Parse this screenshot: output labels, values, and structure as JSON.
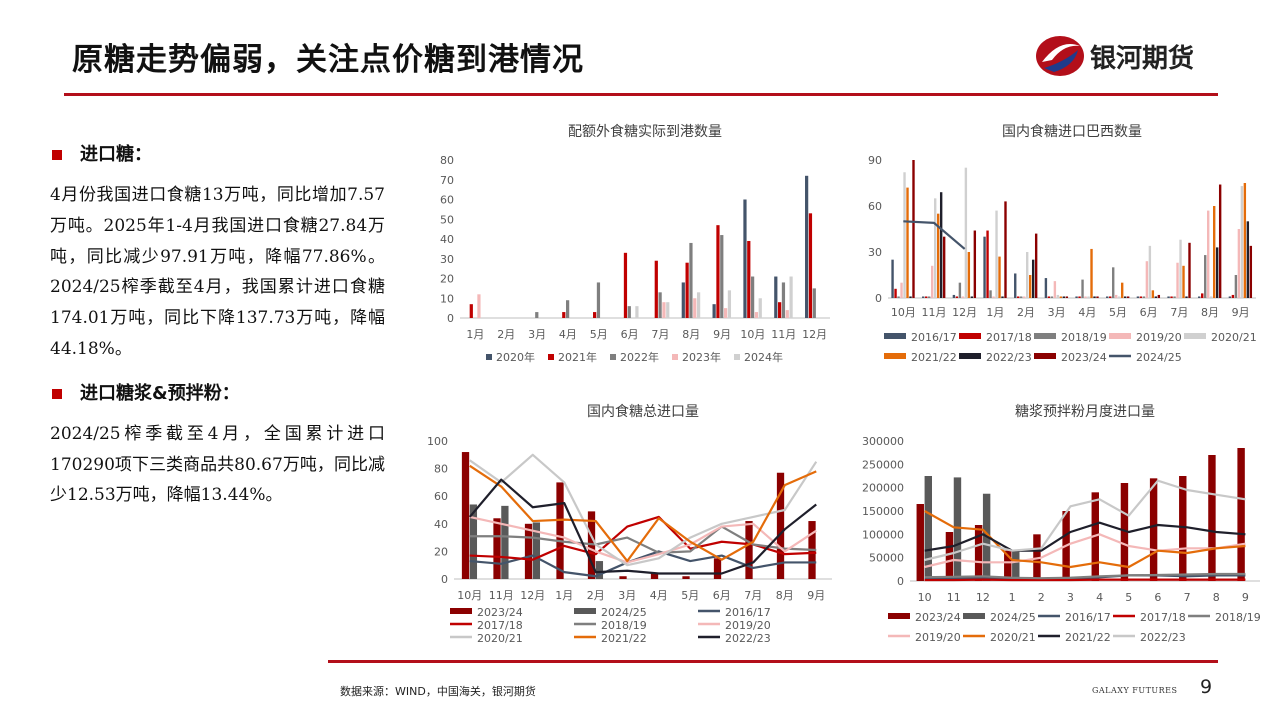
{
  "header": {
    "title": "原糖走势偏弱，关注点价糖到港情况",
    "brand": "银河期货",
    "footer_brand": "GALAXY FUTURES",
    "page_number": "9"
  },
  "colors": {
    "accent": "#b30f1a"
  },
  "left": {
    "sections": [
      {
        "heading": "进口糖：",
        "body": "4月份我国进口食糖13万吨，同比增加7.57万吨。2025年1-4月我国进口食糖27.84万吨，同比减少97.91万吨，降幅77.86%。2024/25榨季截至4月，我国累计进口食糖174.01万吨，同比下降137.73万吨，降幅44.18%。"
      },
      {
        "heading": "进口糖浆&预拌粉：",
        "body": "2024/25榨季截至4月，全国累计进口170290项下三类商品共80.67万吨，同比减少12.53万吨，降幅13.44%。"
      }
    ]
  },
  "source": "数据来源：WIND，中国海关，银河期货",
  "chart_data": [
    {
      "type": "bar",
      "title": "配额外食糖实际到港数量",
      "categories": [
        "1月",
        "2月",
        "3月",
        "4月",
        "5月",
        "6月",
        "7月",
        "8月",
        "9月",
        "10月",
        "11月",
        "12月"
      ],
      "ylim": [
        0,
        80
      ],
      "yticks": [
        0,
        10,
        20,
        30,
        40,
        50,
        60,
        70,
        80
      ],
      "legend_position": "bottom",
      "series": [
        {
          "name": "2020年",
          "color": "#44546a",
          "values": [
            0,
            0,
            0,
            0,
            0,
            0,
            0,
            18,
            7,
            60,
            21,
            72
          ]
        },
        {
          "name": "2021年",
          "color": "#c00000",
          "values": [
            7,
            0,
            0,
            3,
            3,
            33,
            29,
            28,
            47,
            39,
            8,
            53
          ]
        },
        {
          "name": "2022年",
          "color": "#7f7f7f",
          "values": [
            0,
            0,
            3,
            9,
            18,
            6,
            13,
            38,
            42,
            21,
            18,
            15
          ]
        },
        {
          "name": "2023年",
          "color": "#f4b8b8",
          "values": [
            12,
            0,
            0,
            0,
            0,
            0,
            8,
            10,
            5,
            3,
            4,
            0
          ]
        },
        {
          "name": "2024年",
          "color": "#d0d0d0",
          "values": [
            0,
            0,
            0,
            0,
            0,
            6,
            8,
            13,
            14,
            10,
            21,
            0
          ]
        }
      ]
    },
    {
      "type": "bar",
      "title": "国内食糖进口巴西数量",
      "categories": [
        "10月",
        "11月",
        "12月",
        "1月",
        "2月",
        "3月",
        "4月",
        "5月",
        "6月",
        "7月",
        "8月",
        "9月"
      ],
      "ylim": [
        0,
        90
      ],
      "yticks": [
        0,
        30,
        60,
        90
      ],
      "legend_position": "bottom",
      "series": [
        {
          "name": "2016/17",
          "color": "#44546a",
          "values": [
            25,
            1,
            2,
            40,
            16,
            13,
            1,
            1,
            1,
            1,
            1,
            1
          ]
        },
        {
          "name": "2017/18",
          "color": "#c00000",
          "values": [
            6,
            1,
            1,
            44,
            1,
            1,
            1,
            1,
            1,
            1,
            3,
            2
          ]
        },
        {
          "name": "2018/19",
          "color": "#7f7f7f",
          "values": [
            1,
            1,
            10,
            5,
            1,
            1,
            12,
            20,
            1,
            1,
            28,
            15
          ]
        },
        {
          "name": "2019/20",
          "color": "#f4b8b8",
          "values": [
            10,
            21,
            1,
            1,
            1,
            11,
            1,
            2,
            24,
            23,
            57,
            45
          ]
        },
        {
          "name": "2020/21",
          "color": "#d0d0d0",
          "values": [
            82,
            65,
            85,
            57,
            30,
            2,
            1,
            1,
            34,
            38,
            1,
            73
          ]
        },
        {
          "name": "2021/22",
          "color": "#e46c0a",
          "values": [
            72,
            55,
            30,
            27,
            15,
            1,
            32,
            10,
            5,
            21,
            60,
            75
          ]
        },
        {
          "name": "2022/23",
          "color": "#1f1f2b",
          "values": [
            1,
            69,
            1,
            1,
            25,
            1,
            1,
            1,
            1,
            1,
            33,
            50
          ]
        },
        {
          "name": "2023/24",
          "color": "#8b0000",
          "values": [
            90,
            40,
            44,
            63,
            42,
            1,
            1,
            1,
            2,
            36,
            74,
            34
          ]
        }
      ],
      "lines": [
        {
          "name": "2024/25",
          "color": "#44546a",
          "values": [
            50,
            49,
            32,
            null,
            null,
            null,
            null,
            null,
            null,
            null,
            null,
            null
          ]
        }
      ]
    },
    {
      "type": "bar",
      "title": "国内食糖总进口量",
      "categories": [
        "10月",
        "11月",
        "12月",
        "1月",
        "2月",
        "3月",
        "4月",
        "5月",
        "6月",
        "7月",
        "8月",
        "9月"
      ],
      "ylim": [
        0,
        100
      ],
      "yticks": [
        0,
        20,
        40,
        60,
        80,
        100
      ],
      "legend_position": "bottom",
      "series": [
        {
          "name": "2023/24",
          "color": "#8b0000",
          "values": [
            92,
            44,
            40,
            70,
            49,
            2,
            4,
            2,
            15,
            42,
            77,
            42
          ]
        },
        {
          "name": "2024/25",
          "color": "#595959",
          "values": [
            54,
            53,
            41,
            null,
            13,
            null,
            null,
            null,
            null,
            null,
            null,
            null
          ]
        }
      ],
      "lines": [
        {
          "name": "2016/17",
          "color": "#44546a",
          "values": [
            13,
            11,
            17,
            5,
            2,
            12,
            20,
            13,
            17,
            8,
            12,
            12
          ]
        },
        {
          "name": "2017/18",
          "color": "#c00000",
          "values": [
            17,
            16,
            14,
            24,
            18,
            38,
            45,
            22,
            27,
            25,
            18,
            19
          ]
        },
        {
          "name": "2018/19",
          "color": "#7f7f7f",
          "values": [
            31,
            31,
            30,
            27,
            25,
            30,
            19,
            20,
            38,
            25,
            22,
            21
          ]
        },
        {
          "name": "2019/20",
          "color": "#f4b8b8",
          "values": [
            45,
            40,
            35,
            30,
            20,
            12,
            18,
            25,
            38,
            40,
            20,
            35
          ]
        },
        {
          "name": "2020/21",
          "color": "#c8c8c8",
          "values": [
            86,
            70,
            90,
            70,
            25,
            10,
            15,
            30,
            40,
            45,
            50,
            85
          ]
        },
        {
          "name": "2021/22",
          "color": "#e46c0a",
          "values": [
            82,
            67,
            42,
            43,
            42,
            13,
            44,
            27,
            14,
            27,
            68,
            78
          ]
        },
        {
          "name": "2022/23",
          "color": "#1f1f2b",
          "values": [
            45,
            72,
            52,
            55,
            5,
            6,
            4,
            4,
            4,
            12,
            36,
            54
          ]
        }
      ]
    },
    {
      "type": "bar",
      "title": "糖浆预拌粉月度进口量",
      "categories": [
        "10",
        "11",
        "12",
        "1",
        "2",
        "3",
        "4",
        "5",
        "6",
        "7",
        "8",
        "9"
      ],
      "ylim": [
        0,
        300000
      ],
      "yticks": [
        0,
        50000,
        100000,
        150000,
        200000,
        250000,
        300000
      ],
      "legend_position": "bottom",
      "series": [
        {
          "name": "2023/24",
          "color": "#8b0000",
          "values": [
            165000,
            105000,
            120000,
            65000,
            100000,
            150000,
            190000,
            210000,
            220000,
            225000,
            270000,
            285000
          ]
        },
        {
          "name": "2024/25",
          "color": "#595959",
          "values": [
            225000,
            222000,
            187000,
            65000,
            null,
            null,
            null,
            null,
            null,
            null,
            null,
            null
          ]
        }
      ],
      "lines": [
        {
          "name": "2016/17",
          "color": "#44546a",
          "values": [
            5000,
            5000,
            6000,
            4000,
            3000,
            4000,
            8000,
            12000,
            12000,
            10000,
            12000,
            12000
          ]
        },
        {
          "name": "2017/18",
          "color": "#c00000",
          "values": [
            2000,
            2000,
            3000,
            2000,
            2000,
            2000,
            3000,
            3000,
            3000,
            3000,
            3000,
            3000
          ]
        },
        {
          "name": "2018/19",
          "color": "#7f7f7f",
          "values": [
            8000,
            9000,
            10000,
            7000,
            6000,
            7000,
            10000,
            12000,
            13000,
            14000,
            15000,
            15000
          ]
        },
        {
          "name": "2019/20",
          "color": "#f4b8b8",
          "values": [
            30000,
            45000,
            40000,
            40000,
            50000,
            80000,
            100000,
            75000,
            65000,
            70000,
            70000,
            80000
          ]
        },
        {
          "name": "2020/21",
          "color": "#e46c0a",
          "values": [
            150000,
            115000,
            110000,
            45000,
            40000,
            30000,
            40000,
            30000,
            65000,
            60000,
            70000,
            75000
          ]
        },
        {
          "name": "2021/22",
          "color": "#1f1f2b",
          "values": [
            65000,
            75000,
            100000,
            65000,
            65000,
            105000,
            125000,
            105000,
            120000,
            115000,
            105000,
            100000
          ]
        },
        {
          "name": "2022/23",
          "color": "#c8c8c8",
          "values": [
            45000,
            60000,
            80000,
            65000,
            70000,
            160000,
            175000,
            140000,
            215000,
            195000,
            185000,
            175000
          ]
        }
      ]
    }
  ]
}
